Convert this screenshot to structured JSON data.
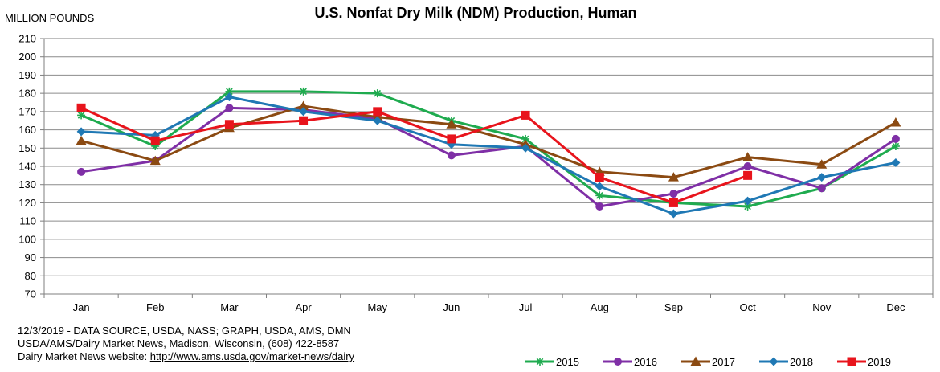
{
  "chart_data": {
    "type": "line",
    "title": "U.S. Nonfat Dry Milk (NDM) Production, Human",
    "ylabel": "MILLION POUNDS",
    "xlabel": "",
    "ylim": [
      70,
      210
    ],
    "ytick_step": 10,
    "grid": true,
    "legend_position": "bottom-right",
    "categories": [
      "Jan",
      "Feb",
      "Mar",
      "Apr",
      "May",
      "Jun",
      "Jul",
      "Aug",
      "Sep",
      "Oct",
      "Nov",
      "Dec"
    ],
    "series": [
      {
        "name": "2015",
        "color": "#1fab4f",
        "marker": "star",
        "values": [
          168,
          151,
          181,
          181,
          180,
          165,
          155,
          124,
          120,
          118,
          128,
          151
        ]
      },
      {
        "name": "2016",
        "color": "#7f2fa6",
        "marker": "circle",
        "values": [
          137,
          143,
          172,
          171,
          166,
          146,
          151,
          118,
          125,
          140,
          128,
          155
        ]
      },
      {
        "name": "2017",
        "color": "#8b4a12",
        "marker": "triangle",
        "values": [
          154,
          143,
          161,
          173,
          167,
          163,
          152,
          137,
          134,
          145,
          141,
          164
        ]
      },
      {
        "name": "2018",
        "color": "#1f78b4",
        "marker": "diamond",
        "values": [
          159,
          157,
          178,
          170,
          165,
          152,
          150,
          129,
          114,
          121,
          134,
          142
        ]
      },
      {
        "name": "2019",
        "color": "#e8141c",
        "marker": "square",
        "values": [
          172,
          154,
          163,
          165,
          170,
          155,
          168,
          134,
          120,
          135,
          null,
          null
        ]
      }
    ]
  },
  "footer": {
    "line1": "12/3/2019 - DATA SOURCE, USDA, NASS; GRAPH, USDA, AMS, DMN",
    "line2": "USDA/AMS/Dairy Market News, Madison, Wisconsin, (608) 422-8587",
    "line3_prefix": "Dairy Market News website: ",
    "line3_url": "http://www.ams.usda.gov/market-news/dairy"
  }
}
